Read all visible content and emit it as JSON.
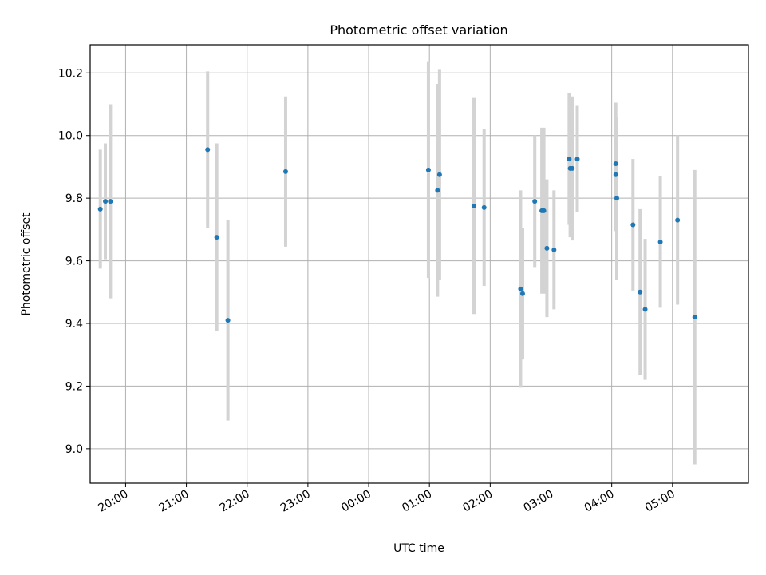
{
  "chart_data": {
    "type": "scatter",
    "title": "Photometric offset variation",
    "xlabel": "UTC time",
    "ylabel": "Photometric offset",
    "x_ticks": [
      "20:00",
      "21:00",
      "22:00",
      "23:00",
      "00:00",
      "01:00",
      "02:00",
      "03:00",
      "04:00",
      "05:00"
    ],
    "y_ticks": [
      "9.0",
      "9.2",
      "9.4",
      "9.6",
      "9.8",
      "10.0",
      "10.2"
    ],
    "xlim": [
      "19:25",
      "06:15"
    ],
    "ylim": [
      8.89,
      10.29
    ],
    "grid": true,
    "colors": {
      "points": "#1f77b4",
      "errorbars": "#d3d3d3",
      "grid": "#b0b0b0"
    },
    "series": [
      {
        "points": [
          {
            "x": "19:35",
            "y": 9.765,
            "err": 0.19
          },
          {
            "x": "19:40",
            "y": 9.79,
            "err": 0.185
          },
          {
            "x": "19:45",
            "y": 9.79,
            "err": 0.31
          },
          {
            "x": "21:21",
            "y": 9.955,
            "err": 0.25
          },
          {
            "x": "21:30",
            "y": 9.675,
            "err": 0.3
          },
          {
            "x": "21:41",
            "y": 9.41,
            "err": 0.32
          },
          {
            "x": "22:38",
            "y": 9.885,
            "err": 0.24
          },
          {
            "x": "00:59",
            "y": 9.89,
            "err": 0.345
          },
          {
            "x": "01:08",
            "y": 9.825,
            "err": 0.34
          },
          {
            "x": "01:10",
            "y": 9.875,
            "err": 0.335
          },
          {
            "x": "01:44",
            "y": 9.775,
            "err": 0.345
          },
          {
            "x": "01:54",
            "y": 9.77,
            "err": 0.25
          },
          {
            "x": "02:30",
            "y": 9.51,
            "err": 0.315
          },
          {
            "x": "02:32",
            "y": 9.495,
            "err": 0.21
          },
          {
            "x": "02:44",
            "y": 9.79,
            "err": 0.21
          },
          {
            "x": "02:51",
            "y": 9.76,
            "err": 0.265
          },
          {
            "x": "02:53",
            "y": 9.76,
            "err": 0.265
          },
          {
            "x": "02:56",
            "y": 9.64,
            "err": 0.22
          },
          {
            "x": "03:03",
            "y": 9.635,
            "err": 0.19
          },
          {
            "x": "03:18",
            "y": 9.925,
            "err": 0.21
          },
          {
            "x": "03:19",
            "y": 9.895,
            "err": 0.22
          },
          {
            "x": "03:21",
            "y": 9.895,
            "err": 0.23
          },
          {
            "x": "03:26",
            "y": 9.925,
            "err": 0.17
          },
          {
            "x": "04:04",
            "y": 9.91,
            "err": 0.195
          },
          {
            "x": "04:04",
            "y": 9.875,
            "err": 0.18
          },
          {
            "x": "04:05",
            "y": 9.8,
            "err": 0.26
          },
          {
            "x": "04:21",
            "y": 9.715,
            "err": 0.21
          },
          {
            "x": "04:28",
            "y": 9.5,
            "err": 0.265
          },
          {
            "x": "04:33",
            "y": 9.445,
            "err": 0.225
          },
          {
            "x": "04:48",
            "y": 9.66,
            "err": 0.21
          },
          {
            "x": "05:05",
            "y": 9.73,
            "err": 0.27
          },
          {
            "x": "05:22",
            "y": 9.42,
            "err": 0.47
          }
        ]
      }
    ]
  }
}
